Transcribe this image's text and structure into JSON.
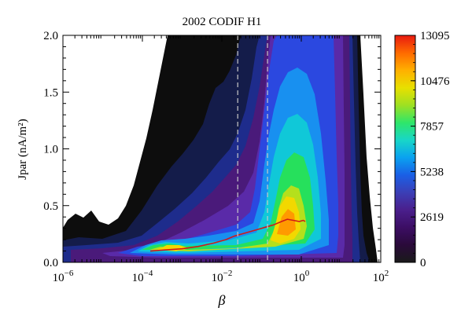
{
  "chart_data": {
    "type": "heatmap",
    "title": "2002 CODIF H1",
    "xlabel": "β",
    "ylabel": "Jpar (nA/m²)",
    "x_scale": "log",
    "x_range_log10": [
      -6,
      2
    ],
    "y_range": [
      0,
      2.0
    ],
    "x_ticks": [
      {
        "v": -6,
        "base": "10",
        "exp": "−6"
      },
      {
        "v": -4,
        "base": "10",
        "exp": "−4"
      },
      {
        "v": -2,
        "base": "10",
        "exp": "−2"
      },
      {
        "v": 0,
        "base": "10",
        "exp": "0"
      },
      {
        "v": 2,
        "base": "10",
        "exp": "2"
      }
    ],
    "y_ticks": [
      {
        "v": 0.0,
        "label": "0.0"
      },
      {
        "v": 0.5,
        "label": "0.5"
      },
      {
        "v": 1.0,
        "label": "1.0"
      },
      {
        "v": 1.5,
        "label": "1.5"
      },
      {
        "v": 2.0,
        "label": "2.0"
      }
    ],
    "vlines_log10": [
      -1.6,
      -0.85
    ],
    "colorbar": {
      "min": 0,
      "max": 13095,
      "ticks": [
        {
          "v": 0,
          "label": "0"
        },
        {
          "v": 2619,
          "label": "2619"
        },
        {
          "v": 5238,
          "label": "5238"
        },
        {
          "v": 7857,
          "label": "7857"
        },
        {
          "v": 10476,
          "label": "10476"
        },
        {
          "v": 13095,
          "label": "13095"
        }
      ],
      "colors": [
        "#1a1a1a",
        "#2a0a3a",
        "#3c0e64",
        "#4a1f8c",
        "#3b3fb6",
        "#1a5fe6",
        "#0aa2f0",
        "#18d6c8",
        "#2ee66a",
        "#9ee022",
        "#e8e000",
        "#ffb000",
        "#ff6a00",
        "#e81a10"
      ]
    },
    "median_curve": {
      "color": "#d01818",
      "x_log10": [
        -3.8,
        -3.4,
        -3.0,
        -2.6,
        -2.2,
        -1.9,
        -1.7,
        -1.5,
        -1.3,
        -1.1,
        -0.9,
        -0.7,
        -0.5,
        -0.35,
        -0.2,
        -0.05,
        0.05,
        0.1
      ],
      "y": [
        0.1,
        0.11,
        0.12,
        0.14,
        0.17,
        0.2,
        0.23,
        0.25,
        0.27,
        0.29,
        0.31,
        0.33,
        0.36,
        0.38,
        0.37,
        0.36,
        0.37,
        0.36
      ]
    }
  }
}
